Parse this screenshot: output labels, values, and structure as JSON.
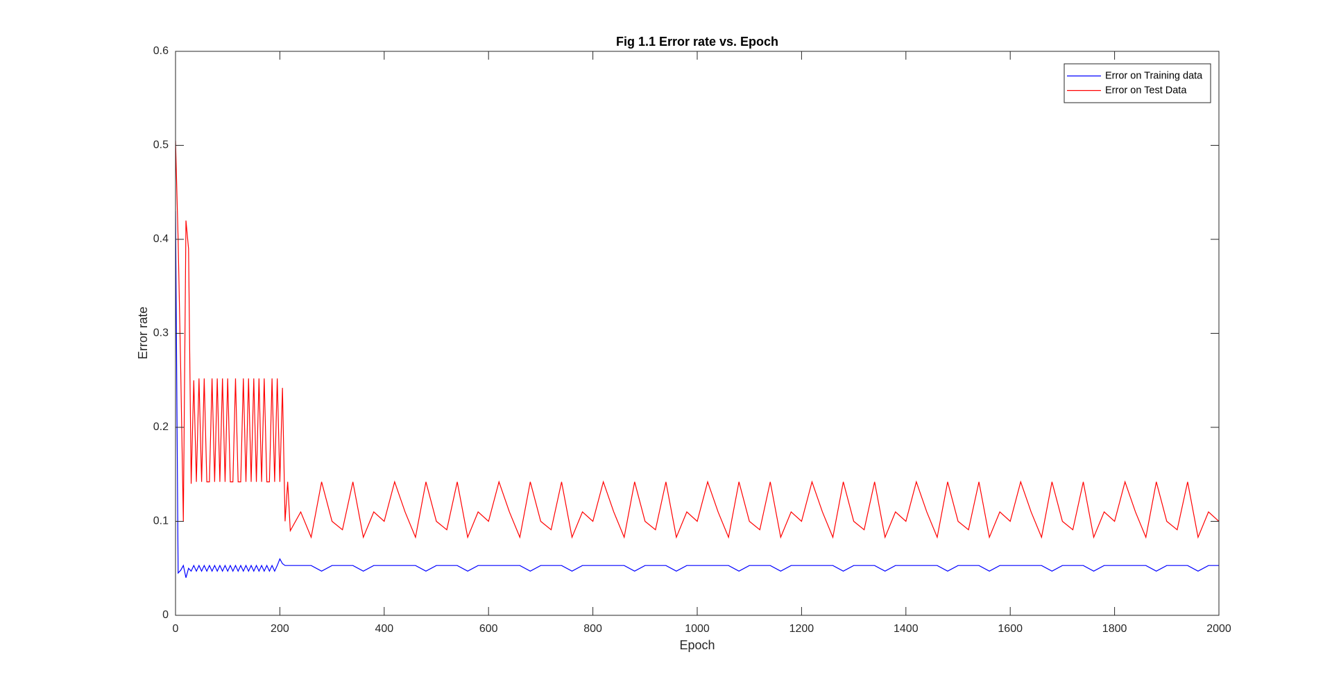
{
  "chart_data": {
    "type": "line",
    "title": "Fig 1.1 Error rate vs. Epoch",
    "x_label": "Epoch",
    "y_label": "Error rate",
    "x": [
      0,
      5,
      10,
      15,
      20,
      25,
      30,
      35,
      40,
      45,
      50,
      55,
      60,
      65,
      70,
      75,
      80,
      85,
      90,
      95,
      100,
      105,
      110,
      115,
      120,
      125,
      130,
      135,
      140,
      145,
      150,
      155,
      160,
      165,
      170,
      175,
      180,
      185,
      190,
      195,
      200,
      205,
      210,
      215,
      220,
      240,
      260,
      280,
      300,
      320,
      340,
      360,
      380,
      400,
      420,
      440,
      460,
      480,
      500,
      520,
      540,
      560,
      580,
      600,
      620,
      640,
      660,
      680,
      700,
      720,
      740,
      760,
      780,
      800,
      820,
      840,
      860,
      880,
      900,
      920,
      940,
      960,
      980,
      1000,
      1020,
      1040,
      1060,
      1080,
      1100,
      1120,
      1140,
      1160,
      1180,
      1200,
      1220,
      1240,
      1260,
      1280,
      1300,
      1320,
      1340,
      1360,
      1380,
      1400,
      1420,
      1440,
      1460,
      1480,
      1500,
      1520,
      1540,
      1560,
      1580,
      1600,
      1620,
      1640,
      1660,
      1680,
      1700,
      1720,
      1740,
      1760,
      1780,
      1800,
      1820,
      1840,
      1860,
      1880,
      1900,
      1920,
      1940,
      1960,
      1980,
      2000
    ],
    "series": [
      {
        "name": "Error on Training data",
        "color": "#0000ff",
        "values": [
          0.43,
          0.045,
          0.048,
          0.053,
          0.04,
          0.05,
          0.047,
          0.053,
          0.047,
          0.053,
          0.047,
          0.053,
          0.047,
          0.053,
          0.047,
          0.053,
          0.047,
          0.053,
          0.047,
          0.053,
          0.047,
          0.053,
          0.047,
          0.053,
          0.047,
          0.053,
          0.047,
          0.053,
          0.047,
          0.053,
          0.047,
          0.053,
          0.047,
          0.053,
          0.047,
          0.053,
          0.047,
          0.053,
          0.047,
          0.053,
          0.06,
          0.055,
          0.053,
          0.053,
          0.053,
          0.053,
          0.053,
          0.047,
          0.053,
          0.053,
          0.053,
          0.047,
          0.053,
          0.053,
          0.053,
          0.053,
          0.053,
          0.047,
          0.053,
          0.053,
          0.053,
          0.047,
          0.053,
          0.053,
          0.053,
          0.053,
          0.053,
          0.047,
          0.053,
          0.053,
          0.053,
          0.047,
          0.053,
          0.053,
          0.053,
          0.053,
          0.053,
          0.047,
          0.053,
          0.053,
          0.053,
          0.047,
          0.053,
          0.053,
          0.053,
          0.053,
          0.053,
          0.047,
          0.053,
          0.053,
          0.053,
          0.047,
          0.053,
          0.053,
          0.053,
          0.053,
          0.053,
          0.047,
          0.053,
          0.053,
          0.053,
          0.047,
          0.053,
          0.053,
          0.053,
          0.053,
          0.053,
          0.047,
          0.053,
          0.053,
          0.053,
          0.047,
          0.053,
          0.053,
          0.053,
          0.053,
          0.053,
          0.047,
          0.053,
          0.053,
          0.053,
          0.047,
          0.053,
          0.053,
          0.053,
          0.053,
          0.053,
          0.047,
          0.053,
          0.053,
          0.053,
          0.047,
          0.053,
          0.053
        ]
      },
      {
        "name": "Error on Test Data",
        "color": "#ff0000",
        "values": [
          0.505,
          0.4,
          0.26,
          0.1,
          0.42,
          0.39,
          0.14,
          0.25,
          0.142,
          0.252,
          0.142,
          0.252,
          0.142,
          0.142,
          0.252,
          0.142,
          0.252,
          0.142,
          0.252,
          0.142,
          0.252,
          0.142,
          0.142,
          0.252,
          0.142,
          0.142,
          0.252,
          0.142,
          0.252,
          0.142,
          0.252,
          0.142,
          0.252,
          0.142,
          0.252,
          0.142,
          0.142,
          0.252,
          0.142,
          0.252,
          0.142,
          0.242,
          0.1,
          0.142,
          0.09,
          0.11,
          0.083,
          0.142,
          0.1,
          0.091,
          0.142,
          0.083,
          0.11,
          0.1,
          0.142,
          0.11,
          0.083,
          0.142,
          0.1,
          0.091,
          0.142,
          0.083,
          0.11,
          0.1,
          0.142,
          0.11,
          0.083,
          0.142,
          0.1,
          0.091,
          0.142,
          0.083,
          0.11,
          0.1,
          0.142,
          0.11,
          0.083,
          0.142,
          0.1,
          0.091,
          0.142,
          0.083,
          0.11,
          0.1,
          0.142,
          0.11,
          0.083,
          0.142,
          0.1,
          0.091,
          0.142,
          0.083,
          0.11,
          0.1,
          0.142,
          0.11,
          0.083,
          0.142,
          0.1,
          0.091,
          0.142,
          0.083,
          0.11,
          0.1,
          0.142,
          0.11,
          0.083,
          0.142,
          0.1,
          0.091,
          0.142,
          0.083,
          0.11,
          0.1,
          0.142,
          0.11,
          0.083,
          0.142,
          0.1,
          0.091,
          0.142,
          0.083,
          0.11,
          0.1,
          0.142,
          0.11,
          0.083,
          0.142,
          0.1,
          0.091,
          0.142,
          0.083,
          0.11,
          0.1
        ]
      }
    ],
    "xlim": [
      0,
      2000
    ],
    "xticks": [
      0,
      200,
      400,
      600,
      800,
      1000,
      1200,
      1400,
      1600,
      1800,
      2000
    ],
    "ylim": [
      0,
      0.6
    ],
    "yticks": [
      0,
      0.1,
      0.2,
      0.3,
      0.4,
      0.5,
      0.6
    ],
    "grid": false,
    "legend": "northeast"
  }
}
